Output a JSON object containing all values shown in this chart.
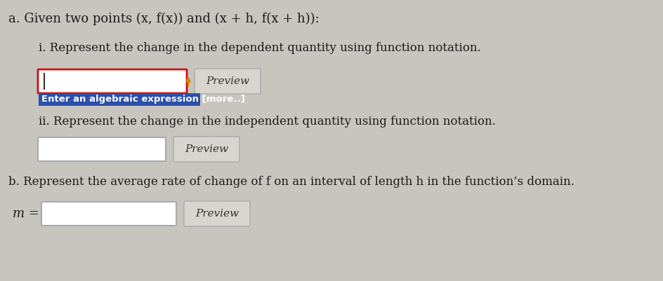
{
  "bg_color": "#c8c4be",
  "text_color": "#1a1a1a",
  "title_text": "a. Given two points (x, f(x)) and (x + h, f(x + h)):",
  "part_i_text": "i. Represent the change in the dependent quantity using function notation.",
  "part_ii_text": "ii. Represent the change in the independent quantity using function notation.",
  "part_b_text": "b. Represent the average rate of change of f on an interval of length h in the function’s domain.",
  "part_b_label": "m =",
  "preview_text": "Preview",
  "hint_text": "Enter an algebraic expression [more..]",
  "hint_box_color": "#2b4faa",
  "hint_text_color": "#ffffff",
  "input_border_color1": "#cc1111",
  "input_border_color2": "#aaaaaa",
  "arrow_color": "#cc8800",
  "font_size_title": 13,
  "font_size_body": 12,
  "font_size_hint": 9.5,
  "font_size_preview": 11,
  "font_size_m": 13
}
